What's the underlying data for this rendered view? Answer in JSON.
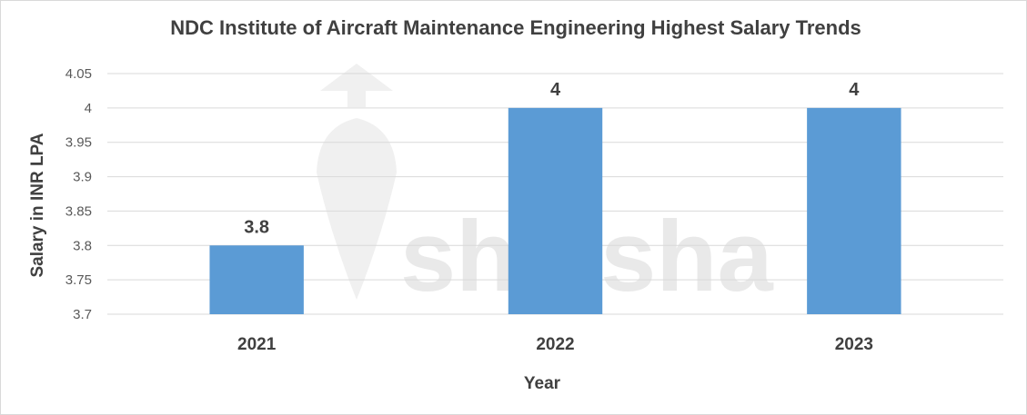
{
  "chart_data": {
    "type": "bar",
    "title": "NDC Institute of Aircraft Maintenance Engineering Highest Salary Trends",
    "xlabel": "Year",
    "ylabel": "Salary in INR LPA",
    "categories": [
      "2021",
      "2022",
      "2023"
    ],
    "values": [
      3.8,
      4,
      4
    ],
    "data_labels": [
      "3.8",
      "4",
      "4"
    ],
    "ylim": [
      3.7,
      4.05
    ],
    "yticks": [
      "3.7",
      "3.75",
      "3.8",
      "3.85",
      "3.9",
      "3.95",
      "4",
      "4.05"
    ],
    "grid": true,
    "legend": "none",
    "bar_color": "#5b9bd5"
  },
  "watermark": {
    "text": "shiksha",
    "logo_icon": "graduation-cap-icon"
  }
}
